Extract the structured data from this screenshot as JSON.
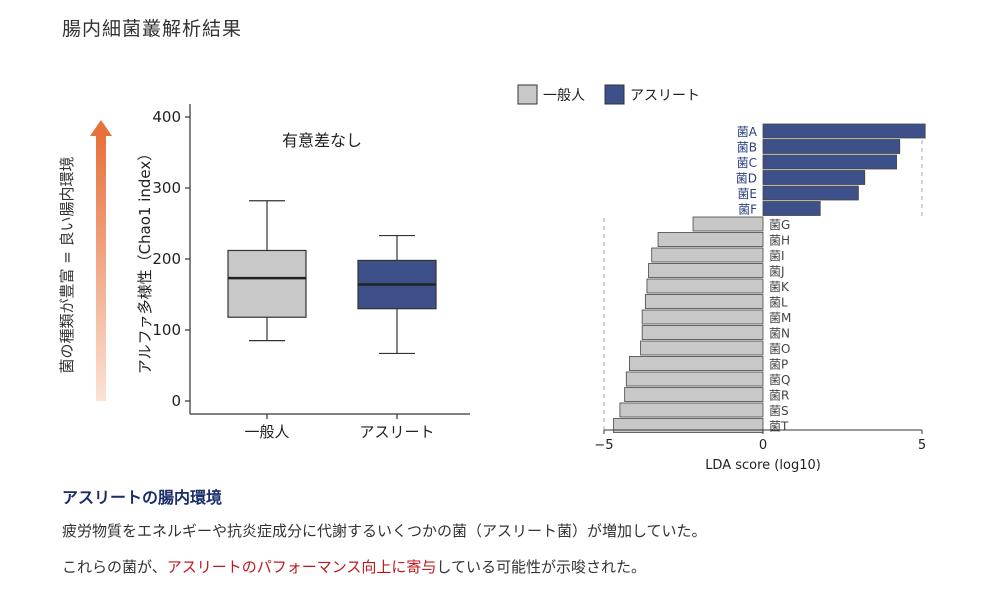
{
  "page_title": "腸内細菌叢解析結果",
  "side_label": "菌の種類が豊富 = 良い腸内環境",
  "colors": {
    "general": "#c8c8c8",
    "athlete": "#3d5089",
    "athlete_text": "#2b3f7e",
    "highlight": "#c0171c",
    "arrow": "#e8703a"
  },
  "chart_data": [
    {
      "type": "box",
      "ylabel": "アルファ多様性（Chao1 index）",
      "annotation": "有意差なし",
      "ylim": [
        0,
        420
      ],
      "yticks": [
        0,
        100,
        200,
        300,
        400
      ],
      "categories": [
        "一般人",
        "アスリート"
      ],
      "boxes": [
        {
          "name": "一般人",
          "min": 85,
          "q1": 118,
          "median": 173,
          "q3": 212,
          "max": 282
        },
        {
          "name": "アスリート",
          "min": 67,
          "q1": 130,
          "median": 164,
          "q3": 198,
          "max": 233
        }
      ]
    },
    {
      "type": "bar",
      "orientation": "horizontal",
      "xlabel": "LDA score (log10)",
      "xlim": [
        -5,
        5
      ],
      "xticks": [
        -5,
        0,
        5
      ],
      "legend": [
        "一般人",
        "アスリート"
      ],
      "legend_position": "top",
      "categories": [
        "菌A",
        "菌B",
        "菌C",
        "菌D",
        "菌E",
        "菌F",
        "菌G",
        "菌H",
        "菌I",
        "菌J",
        "菌K",
        "菌L",
        "菌M",
        "菌N",
        "菌O",
        "菌P",
        "菌Q",
        "菌R",
        "菌S",
        "菌T"
      ],
      "values": [
        5.1,
        4.3,
        4.2,
        3.2,
        3.0,
        1.8,
        -2.2,
        -3.3,
        -3.5,
        -3.6,
        -3.65,
        -3.7,
        -3.8,
        -3.8,
        -3.85,
        -4.2,
        -4.3,
        -4.35,
        -4.5,
        -4.7
      ],
      "groups": [
        "アスリート",
        "アスリート",
        "アスリート",
        "アスリート",
        "アスリート",
        "アスリート",
        "一般人",
        "一般人",
        "一般人",
        "一般人",
        "一般人",
        "一般人",
        "一般人",
        "一般人",
        "一般人",
        "一般人",
        "一般人",
        "一般人",
        "一般人",
        "一般人"
      ]
    }
  ],
  "notes": {
    "heading": "アスリートの腸内環境",
    "line1": "疲労物質をエネルギーや抗炎症成分に代謝するいくつかの菌（アスリート菌）が増加していた。",
    "line2_pre": "これらの菌が、",
    "line2_highlight": "アスリートのパフォーマンス向上に寄与",
    "line2_post": "している可能性が示唆された。"
  }
}
